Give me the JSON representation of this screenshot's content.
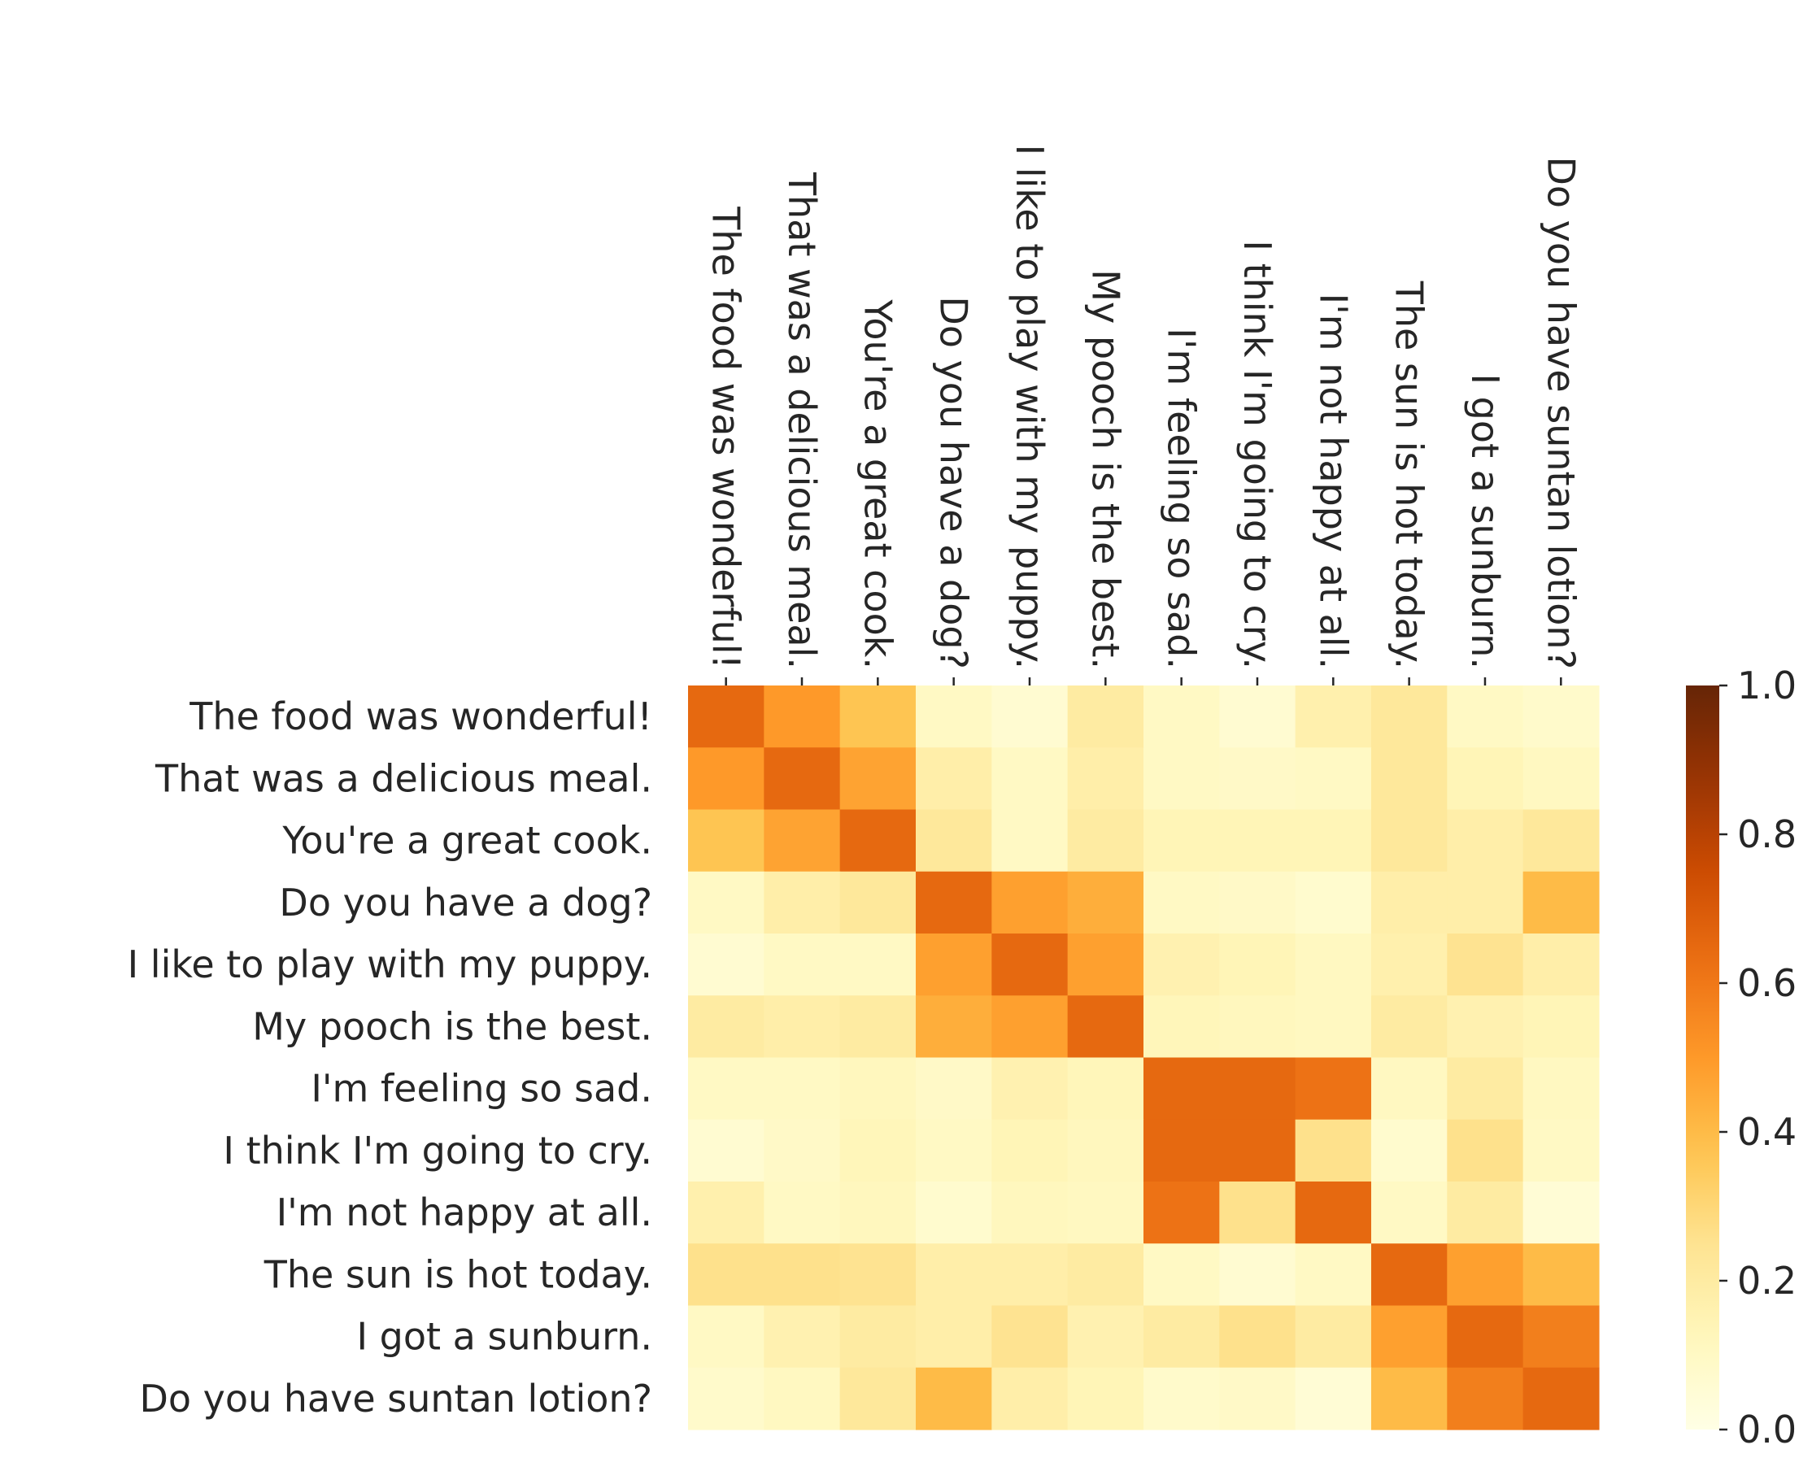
{
  "chart_data": {
    "type": "heatmap",
    "title": "",
    "xlabel": "",
    "ylabel": "",
    "x_labels": [
      "The food was wonderful!",
      "That was a delicious meal.",
      "You're a great cook.",
      "Do you have a dog?",
      "I like to play with my puppy.",
      "My pooch is the best.",
      "I'm feeling so sad.",
      "I think I'm going to cry.",
      "I'm not happy at all.",
      "The sun is hot today.",
      "I got a sunburn.",
      "Do you have suntan lotion?"
    ],
    "y_labels": [
      "The food was wonderful!",
      "That was a delicious meal.",
      "You're a great cook.",
      "Do you have a dog?",
      "I like to play with my puppy.",
      "My pooch is the best.",
      "I'm feeling so sad.",
      "I think I'm going to cry.",
      "I'm not happy at all.",
      "The sun is hot today.",
      "I got a sunburn.",
      "Do you have suntan lotion?"
    ],
    "values": [
      [
        0.65,
        0.5,
        0.37,
        0.1,
        0.06,
        0.2,
        0.1,
        0.06,
        0.17,
        0.22,
        0.1,
        0.08
      ],
      [
        0.5,
        0.65,
        0.47,
        0.18,
        0.1,
        0.18,
        0.1,
        0.09,
        0.1,
        0.22,
        0.14,
        0.11
      ],
      [
        0.37,
        0.47,
        0.65,
        0.22,
        0.1,
        0.2,
        0.14,
        0.14,
        0.14,
        0.22,
        0.18,
        0.22
      ],
      [
        0.1,
        0.18,
        0.22,
        0.65,
        0.48,
        0.44,
        0.1,
        0.09,
        0.07,
        0.18,
        0.18,
        0.4
      ],
      [
        0.06,
        0.1,
        0.1,
        0.48,
        0.65,
        0.48,
        0.16,
        0.14,
        0.11,
        0.17,
        0.25,
        0.18
      ],
      [
        0.2,
        0.18,
        0.2,
        0.44,
        0.48,
        0.65,
        0.13,
        0.12,
        0.11,
        0.2,
        0.16,
        0.14
      ],
      [
        0.1,
        0.1,
        0.12,
        0.09,
        0.16,
        0.13,
        0.65,
        0.65,
        0.62,
        0.11,
        0.2,
        0.11
      ],
      [
        0.06,
        0.09,
        0.13,
        0.1,
        0.14,
        0.12,
        0.65,
        0.65,
        0.26,
        0.07,
        0.26,
        0.1
      ],
      [
        0.17,
        0.1,
        0.12,
        0.07,
        0.12,
        0.11,
        0.62,
        0.26,
        0.65,
        0.1,
        0.2,
        0.05
      ],
      [
        0.26,
        0.26,
        0.25,
        0.18,
        0.18,
        0.2,
        0.1,
        0.06,
        0.1,
        0.65,
        0.48,
        0.4
      ],
      [
        0.1,
        0.16,
        0.2,
        0.18,
        0.25,
        0.16,
        0.2,
        0.26,
        0.2,
        0.48,
        0.65,
        0.58
      ],
      [
        0.08,
        0.11,
        0.22,
        0.4,
        0.18,
        0.14,
        0.08,
        0.09,
        0.05,
        0.4,
        0.58,
        0.65
      ]
    ],
    "vmin": 0.0,
    "vmax": 1.0,
    "colormap": "YlOrBr",
    "colorbar": {
      "ticks": [
        0.0,
        0.2,
        0.4,
        0.6,
        0.8,
        1.0
      ],
      "tick_labels": [
        "0.0",
        "0.2",
        "0.4",
        "0.6",
        "0.8",
        "1.0"
      ]
    },
    "x_tick_position": "top",
    "x_label_rotation": "90-clockwise",
    "grid": false
  }
}
